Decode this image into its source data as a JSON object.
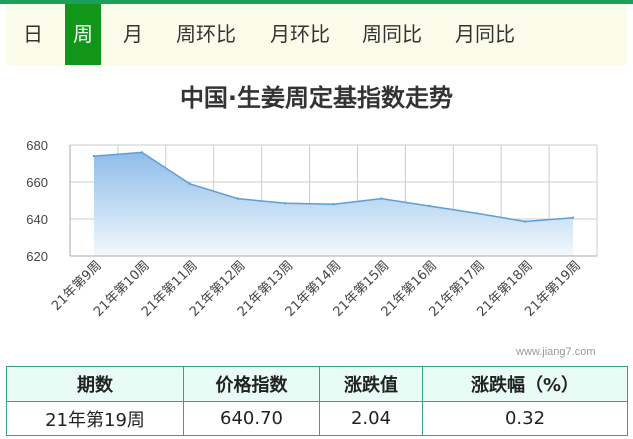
{
  "tabs": [
    "日",
    "周",
    "月",
    "周环比",
    "月环比",
    "周同比",
    "月同比"
  ],
  "active_tab": 1,
  "chart_data": {
    "type": "area",
    "title": "中国·生姜周定基指数走势",
    "categories": [
      "21年第9周",
      "21年第10周",
      "21年第11周",
      "21年第12周",
      "21年第13周",
      "21年第14周",
      "21年第15周",
      "21年第16周",
      "21年第17周",
      "21年第18周",
      "21年第19周"
    ],
    "series": [
      {
        "values": [
          674,
          676,
          659,
          651,
          648.5,
          648,
          651,
          647,
          643,
          638.66,
          640.7
        ]
      }
    ],
    "ylim": [
      620,
      680
    ],
    "yticks": [
      620,
      640,
      660,
      680
    ],
    "grid": true,
    "colors": {
      "line": "#5b9fd8",
      "area_top": "#8ebde9",
      "area_bottom": "#f3f8fd"
    }
  },
  "watermark": "www.jiang7.com",
  "table": {
    "headers": [
      "期数",
      "价格指数",
      "涨跌值",
      "涨跌幅（%）"
    ],
    "row": [
      "21年第19周",
      "640.70",
      "2.04",
      "0.32"
    ]
  }
}
